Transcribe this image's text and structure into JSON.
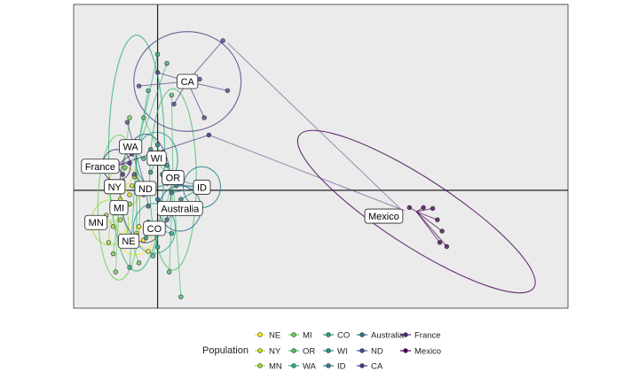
{
  "chart_data": {
    "type": "scatter",
    "title": "",
    "xlabel": "",
    "ylabel": "",
    "xlim": [
      -1.8,
      8.8
    ],
    "ylim": [
      -2.6,
      4.1
    ],
    "grid": false,
    "axis_lines": {
      "x": 0,
      "y": 0
    },
    "legend": {
      "title": "Population",
      "placement": "bottom"
    },
    "series": [
      {
        "name": "NE",
        "color": "#fde725",
        "centroid": [
          -0.47,
          -1.12
        ],
        "ellipse": {
          "rx": 0.35,
          "ry": 0.3,
          "angle": 0
        },
        "points": [
          [
            -0.3,
            -1.1
          ],
          [
            -0.45,
            -0.95
          ],
          [
            -0.6,
            -1.2
          ],
          [
            -0.2,
            -1.35
          ],
          [
            -0.4,
            -0.8
          ]
        ]
      },
      {
        "name": "NY",
        "color": "#d2e21b",
        "centroid": [
          -0.72,
          0.06
        ],
        "ellipse": {
          "rx": 0.35,
          "ry": 0.45,
          "angle": 0
        },
        "points": [
          [
            -0.55,
            0.1
          ],
          [
            -0.6,
            -0.1
          ],
          [
            -0.75,
            0.2
          ],
          [
            -0.5,
            0.3
          ],
          [
            -0.8,
            -0.2
          ]
        ]
      },
      {
        "name": "MN",
        "color": "#a0da39",
        "centroid": [
          -1.02,
          -0.71
        ],
        "ellipse": {
          "rx": 0.4,
          "ry": 0.5,
          "angle": 0
        },
        "points": [
          [
            -0.8,
            -0.65
          ],
          [
            -0.95,
            -0.8
          ],
          [
            -1.1,
            -0.55
          ],
          [
            -0.7,
            -1.05
          ],
          [
            -1.05,
            -1.15
          ],
          [
            -0.85,
            -0.4
          ]
        ]
      },
      {
        "name": "MI",
        "color": "#6ccd5a",
        "centroid": [
          -0.83,
          -0.38
        ],
        "ellipse": {
          "rx": 0.45,
          "ry": 1.6,
          "angle": 0
        },
        "points": [
          [
            -0.6,
            -0.3
          ],
          [
            -0.9,
            -0.5
          ],
          [
            -0.7,
            0.5
          ],
          [
            -0.95,
            -1.4
          ],
          [
            -0.9,
            -1.8
          ],
          [
            -0.4,
            -1.6
          ],
          [
            -0.6,
            1.6
          ]
        ]
      },
      {
        "name": "OR",
        "color": "#4ac16d",
        "centroid": [
          0.33,
          0.24
        ],
        "ellipse": {
          "rx": 0.5,
          "ry": 2.0,
          "angle": 0
        },
        "points": [
          [
            0.2,
            0.3
          ],
          [
            0.0,
            0.6
          ],
          [
            -0.3,
            1.6
          ],
          [
            0.3,
            2.1
          ],
          [
            0.25,
            -1.8
          ],
          [
            0.5,
            -2.35
          ],
          [
            -0.1,
            -1.45
          ]
        ]
      },
      {
        "name": "WA",
        "color": "#2db27d",
        "centroid": [
          -0.45,
          0.82
        ],
        "ellipse": {
          "rx": 0.6,
          "ry": 2.6,
          "angle": 0
        },
        "points": [
          [
            0.0,
            3.0
          ],
          [
            -0.2,
            2.2
          ],
          [
            -0.3,
            0.7
          ],
          [
            0.2,
            2.8
          ],
          [
            -0.45,
            -1.0
          ],
          [
            -0.6,
            -1.7
          ]
        ]
      },
      {
        "name": "CO",
        "color": "#1fa187",
        "centroid": [
          -0.07,
          -0.84
        ],
        "ellipse": {
          "rx": 0.45,
          "ry": 0.55,
          "angle": 0
        },
        "points": [
          [
            -0.2,
            -0.7
          ],
          [
            0.1,
            -0.9
          ],
          [
            0.3,
            -0.95
          ],
          [
            -0.25,
            -1.05
          ],
          [
            0.0,
            -1.25
          ]
        ]
      },
      {
        "name": "WI",
        "color": "#21918c",
        "centroid": [
          -0.02,
          0.68
        ],
        "ellipse": {
          "rx": 0.45,
          "ry": 0.6,
          "angle": 0
        },
        "points": [
          [
            0.1,
            0.8
          ],
          [
            0.2,
            0.55
          ],
          [
            0.0,
            1.0
          ],
          [
            -0.15,
            0.4
          ],
          [
            -0.15,
            0.9
          ]
        ]
      },
      {
        "name": "ID",
        "color": "#277f8e",
        "centroid": [
          0.95,
          0.07
        ],
        "ellipse": {
          "rx": 0.4,
          "ry": 0.45,
          "angle": 0
        },
        "points": [
          [
            0.4,
            0.1
          ],
          [
            0.5,
            -0.2
          ],
          [
            0.2,
            0.15
          ],
          [
            0.3,
            -0.05
          ],
          [
            0.1,
            0.35
          ]
        ]
      },
      {
        "name": "Australia",
        "color": "#2c728e",
        "centroid": [
          0.48,
          -0.4
        ],
        "ellipse": {
          "rx": 0.45,
          "ry": 0.5,
          "angle": 0
        },
        "points": [
          [
            0.15,
            -0.5
          ],
          [
            0.1,
            -0.3
          ],
          [
            0.2,
            -0.65
          ],
          [
            0.0,
            -0.2
          ],
          [
            0.25,
            -0.45
          ]
        ]
      },
      {
        "name": "ND",
        "color": "#3b528b",
        "centroid": [
          -0.26,
          0.04
        ],
        "ellipse": {
          "rx": 0.55,
          "ry": 1.2,
          "angle": 0
        },
        "points": [
          [
            -0.45,
            0.05
          ],
          [
            -0.3,
            -0.1
          ],
          [
            -0.15,
            0.15
          ],
          [
            -0.5,
            0.35
          ],
          [
            -0.65,
            1.5
          ],
          [
            -0.2,
            -0.35
          ]
        ]
      },
      {
        "name": "CA",
        "color": "#414487",
        "centroid": [
          0.64,
          2.4
        ],
        "ellipse": {
          "rx": 1.15,
          "ry": 1.1,
          "angle": 0
        },
        "points": [
          [
            -0.4,
            2.3
          ],
          [
            0.0,
            2.6
          ],
          [
            0.9,
            2.45
          ],
          [
            1.4,
            3.3
          ],
          [
            1.0,
            1.6
          ],
          [
            0.35,
            1.9
          ],
          [
            1.5,
            2.2
          ]
        ]
      },
      {
        "name": "France",
        "color": "#482878",
        "centroid": [
          -0.88,
          0.55
        ],
        "ellipse": {
          "rx": 0.3,
          "ry": 0.35,
          "angle": 0
        },
        "points": [
          [
            -0.6,
            0.6
          ],
          [
            -0.75,
            0.35
          ],
          [
            -1.0,
            0.45
          ],
          [
            -0.55,
            0.8
          ],
          [
            1.1,
            1.22
          ]
        ]
      },
      {
        "name": "Mexico",
        "color": "#440154",
        "centroid": [
          5.55,
          -0.47
        ],
        "ellipse": {
          "rx": 3.0,
          "ry": 0.75,
          "angle": 33
        },
        "points": [
          [
            5.4,
            -0.38
          ],
          [
            5.7,
            -0.38
          ],
          [
            6.0,
            -0.65
          ],
          [
            6.05,
            -1.15
          ],
          [
            6.2,
            -1.24
          ],
          [
            5.9,
            -0.4
          ],
          [
            6.1,
            -0.9
          ]
        ]
      }
    ],
    "labels": [
      {
        "name": "CA",
        "at": [
          0.64,
          2.4
        ]
      },
      {
        "name": "WA",
        "at": [
          -0.58,
          0.96
        ]
      },
      {
        "name": "WI",
        "at": [
          -0.02,
          0.71
        ]
      },
      {
        "name": "France",
        "at": [
          -1.23,
          0.53
        ]
      },
      {
        "name": "OR",
        "at": [
          0.33,
          0.28
        ]
      },
      {
        "name": "NY",
        "at": [
          -0.92,
          0.08
        ]
      },
      {
        "name": "ND",
        "at": [
          -0.26,
          0.04
        ]
      },
      {
        "name": "ID",
        "at": [
          0.95,
          0.07
        ]
      },
      {
        "name": "MI",
        "at": [
          -0.83,
          -0.38
        ]
      },
      {
        "name": "Australia",
        "at": [
          0.48,
          -0.4
        ]
      },
      {
        "name": "MN",
        "at": [
          -1.32,
          -0.71
        ]
      },
      {
        "name": "CO",
        "at": [
          -0.07,
          -0.84
        ]
      },
      {
        "name": "NE",
        "at": [
          -0.62,
          -1.12
        ]
      },
      {
        "name": "Mexico",
        "at": [
          4.85,
          -0.57
        ]
      }
    ],
    "extra_links": [
      {
        "from": [
          1.5,
          3.25
        ],
        "to": [
          5.2,
          -0.4
        ],
        "color": "#414487"
      },
      {
        "from": [
          1.1,
          1.22
        ],
        "to": [
          5.3,
          -0.45
        ],
        "color": "#482878"
      }
    ]
  }
}
